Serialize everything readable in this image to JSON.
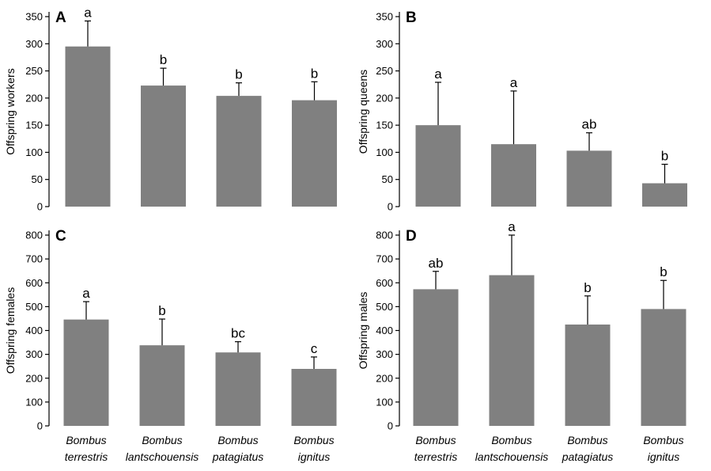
{
  "chart_data": [
    {
      "type": "bar",
      "panel": "A",
      "ylabel": "Offspring workers",
      "categories": [
        "Bombus terrestris",
        "Bombus lantschouensis",
        "Bombus patagiatus",
        "Bombus ignitus"
      ],
      "values": [
        295,
        223,
        204,
        196
      ],
      "errors": [
        47,
        32,
        24,
        34
      ],
      "significance": [
        "a",
        "b",
        "b",
        "b"
      ],
      "ylim": [
        0,
        350
      ],
      "yticks": [
        0,
        50,
        100,
        150,
        200,
        250,
        300,
        350
      ],
      "bar_color": "#808080"
    },
    {
      "type": "bar",
      "panel": "B",
      "ylabel": "Offspring queens",
      "categories": [
        "Bombus terrestris",
        "Bombus lantschouensis",
        "Bombus patagiatus",
        "Bombus ignitus"
      ],
      "values": [
        150,
        115,
        103,
        43
      ],
      "errors": [
        79,
        98,
        33,
        35
      ],
      "significance": [
        "a",
        "a",
        "ab",
        "b"
      ],
      "ylim": [
        0,
        350
      ],
      "yticks": [
        0,
        50,
        100,
        150,
        200,
        250,
        300,
        350
      ],
      "bar_color": "#808080"
    },
    {
      "type": "bar",
      "panel": "C",
      "ylabel": "Offspring females",
      "categories": [
        "Bombus terrestris",
        "Bombus lantschouensis",
        "Bombus patagiatus",
        "Bombus ignitus"
      ],
      "values": [
        446,
        338,
        308,
        239
      ],
      "errors": [
        75,
        110,
        45,
        50
      ],
      "significance": [
        "a",
        "b",
        "bc",
        "c"
      ],
      "ylim": [
        0,
        800
      ],
      "yticks": [
        0,
        100,
        200,
        300,
        400,
        500,
        600,
        700,
        800
      ],
      "bar_color": "#808080"
    },
    {
      "type": "bar",
      "panel": "D",
      "ylabel": "Offspring males",
      "categories": [
        "Bombus terrestris",
        "Bombus lantschouensis",
        "Bombus patagiatus",
        "Bombus ignitus"
      ],
      "values": [
        573,
        632,
        425,
        490
      ],
      "errors": [
        75,
        168,
        120,
        120
      ],
      "significance": [
        "ab",
        "a",
        "b",
        "b"
      ],
      "ylim": [
        0,
        800
      ],
      "yticks": [
        0,
        100,
        200,
        300,
        400,
        500,
        600,
        700,
        800
      ],
      "bar_color": "#808080"
    }
  ],
  "x_labels": [
    {
      "genus": "Bombus",
      "species": "terrestris"
    },
    {
      "genus": "Bombus",
      "species": "lantschouensis"
    },
    {
      "genus": "Bombus",
      "species": "patagiatus"
    },
    {
      "genus": "Bombus",
      "species": "ignitus"
    }
  ]
}
